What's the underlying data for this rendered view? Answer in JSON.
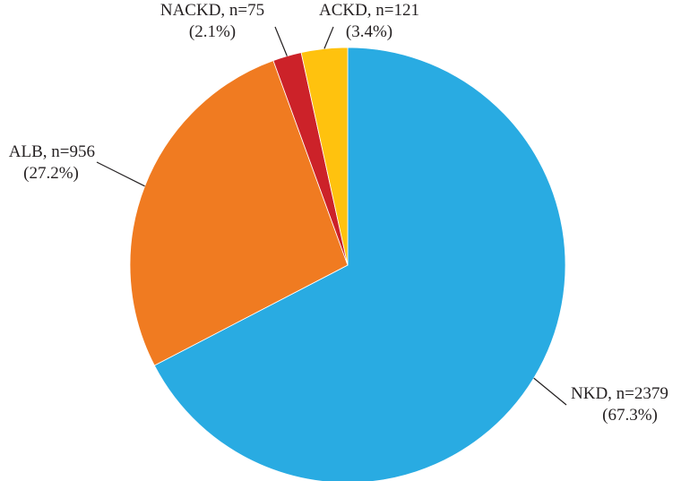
{
  "chart_data": {
    "type": "pie",
    "title": "",
    "start_angle_deg": 0,
    "direction": "clockwise",
    "slices": [
      {
        "label": "NKD, n=2379",
        "percent_label": "(67.3%)",
        "value": 2379,
        "percent": 67.3,
        "color": "#29abe2"
      },
      {
        "label": "ALB, n=956",
        "percent_label": "(27.2%)",
        "value": 956,
        "percent": 27.2,
        "color": "#f07b21"
      },
      {
        "label": "NACKD, n=75",
        "percent_label": "(2.1%)",
        "value": 75,
        "percent": 2.1,
        "color": "#cc2229"
      },
      {
        "label": "ACKD, n=121",
        "percent_label": "(3.4%)",
        "value": 121,
        "percent": 3.4,
        "color": "#ffc20e"
      }
    ],
    "legend": "none"
  }
}
